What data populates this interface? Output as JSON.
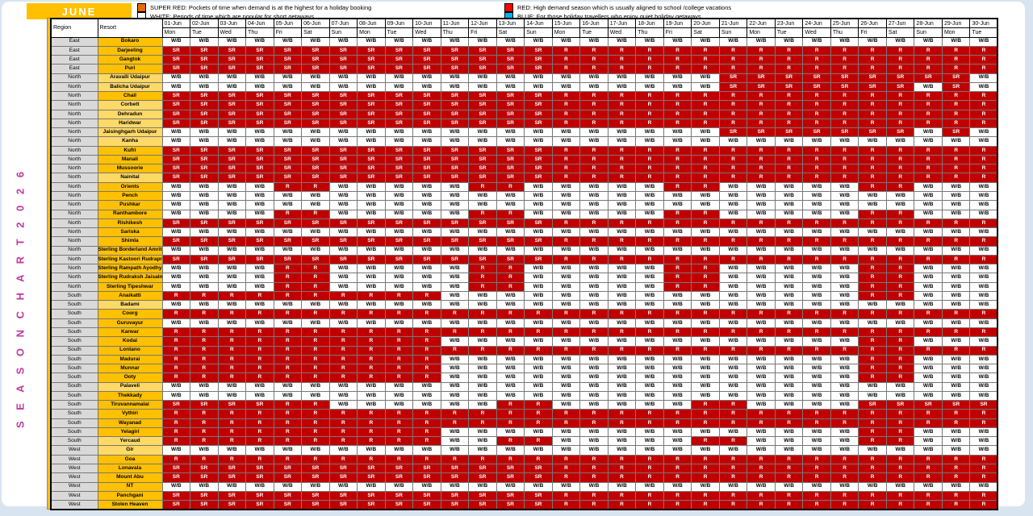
{
  "title": "JUNE",
  "vertical_label": "S E A S O N   C H A R T   2 0 2 6",
  "legend": [
    {
      "name": "super-red",
      "swatch": "#E26B0A",
      "label": "SUPER RED: Pockets of time when demand is at the highest for a holiday booking"
    },
    {
      "name": "white",
      "swatch": "#FFFFFF",
      "label": "WHITE: Periods of time which are popular for short getaways"
    },
    {
      "name": "red",
      "swatch": "#FF0000",
      "label": "RED: High demand season which is usually aligned to school /college vacations"
    },
    {
      "name": "blue",
      "swatch": "#00B0F0",
      "label": "BLUE: For those holiday travellers who enjoy quiet holiday getaways"
    }
  ],
  "colors": {
    "cell_red": "#C00000",
    "gold": "#FFC000",
    "light_gold": "#FFD966",
    "region_gray": "#D9D9D9",
    "accent_magenta": "#C0399F"
  },
  "columns": {
    "region_header": "Region",
    "resort_header": "Resort",
    "dates": [
      "01-Jun",
      "02-Jun",
      "03-Jun",
      "04-Jun",
      "05-Jun",
      "06-Jun",
      "07-Jun",
      "08-Jun",
      "09-Jun",
      "10-Jun",
      "11-Jun",
      "12-Jun",
      "13-Jun",
      "14-Jun",
      "15-Jun",
      "16-Jun",
      "17-Jun",
      "18-Jun",
      "19-Jun",
      "20-Jun",
      "21-Jun",
      "22-Jun",
      "23-Jun",
      "24-Jun",
      "25-Jun",
      "26-Jun",
      "27-Jun",
      "28-Jun",
      "29-Jun",
      "30-Jun"
    ],
    "days": [
      "Mon",
      "Tue",
      "Wed",
      "Thu",
      "Fri",
      "Sat",
      "Sun",
      "Mon",
      "Tue",
      "Wed",
      "Thu",
      "Fri",
      "Sat",
      "Sun",
      "Mon",
      "Tue",
      "Wed",
      "Thu",
      "Fri",
      "Sat",
      "Sun",
      "Mon",
      "Tue",
      "Wed",
      "Thu",
      "Fri",
      "Sat",
      "Sun",
      "Mon",
      "Tue"
    ]
  },
  "rows": [
    {
      "region": "East",
      "resort": "Bokaro",
      "shade": "gold",
      "runs": [
        [
          "W/B",
          30
        ]
      ]
    },
    {
      "region": "East",
      "resort": "Darjeeling",
      "shade": "gold",
      "runs": [
        [
          "SR",
          14
        ],
        [
          "R",
          16
        ]
      ]
    },
    {
      "region": "East",
      "resort": "Gangtok",
      "shade": "gold",
      "runs": [
        [
          "SR",
          14
        ],
        [
          "R",
          16
        ]
      ]
    },
    {
      "region": "East",
      "resort": "Puri",
      "shade": "gold",
      "runs": [
        [
          "SR",
          14
        ],
        [
          "R",
          16
        ]
      ]
    },
    {
      "region": "North",
      "resort": "Aravalli Udaipur",
      "shade": "light",
      "runs": [
        [
          "W/B",
          20
        ],
        [
          "SR",
          9
        ],
        [
          "W/B",
          1
        ]
      ]
    },
    {
      "region": "North",
      "resort": "Balicha Udaipur",
      "shade": "light",
      "runs": [
        [
          "W/B",
          20
        ],
        [
          "SR",
          7
        ],
        [
          "W/B",
          1
        ],
        [
          "SR",
          1
        ],
        [
          "W/B",
          1
        ]
      ]
    },
    {
      "region": "North",
      "resort": "Chail",
      "shade": "gold",
      "runs": [
        [
          "SR",
          14
        ],
        [
          "R",
          16
        ]
      ]
    },
    {
      "region": "North",
      "resort": "Corbett",
      "shade": "light",
      "runs": [
        [
          "SR",
          14
        ],
        [
          "R",
          16
        ]
      ]
    },
    {
      "region": "North",
      "resort": "Dehradun",
      "shade": "light",
      "runs": [
        [
          "SR",
          14
        ],
        [
          "R",
          16
        ]
      ]
    },
    {
      "region": "North",
      "resort": "Haridwar",
      "shade": "light",
      "runs": [
        [
          "SR",
          14
        ],
        [
          "R",
          16
        ]
      ]
    },
    {
      "region": "North",
      "resort": "Jaisinghgarh Udaipur",
      "shade": "light",
      "runs": [
        [
          "W/B",
          20
        ],
        [
          "SR",
          7
        ],
        [
          "W/B",
          1
        ],
        [
          "SR",
          1
        ],
        [
          "W/B",
          1
        ]
      ]
    },
    {
      "region": "North",
      "resort": "Kanha",
      "shade": "light",
      "runs": [
        [
          "W/B",
          30
        ]
      ]
    },
    {
      "region": "North",
      "resort": "Kufri",
      "shade": "gold",
      "runs": [
        [
          "SR",
          14
        ],
        [
          "R",
          16
        ]
      ]
    },
    {
      "region": "North",
      "resort": "Manali",
      "shade": "gold",
      "runs": [
        [
          "SR",
          14
        ],
        [
          "R",
          16
        ]
      ]
    },
    {
      "region": "North",
      "resort": "Mussoorie",
      "shade": "gold",
      "runs": [
        [
          "SR",
          14
        ],
        [
          "R",
          16
        ]
      ]
    },
    {
      "region": "North",
      "resort": "Nainital",
      "shade": "light",
      "runs": [
        [
          "SR",
          14
        ],
        [
          "R",
          16
        ]
      ]
    },
    {
      "region": "North",
      "resort": "Orients",
      "shade": "gold",
      "runs": [
        [
          "W/B",
          4
        ],
        [
          "R",
          2
        ],
        [
          "W/B",
          5
        ],
        [
          "R",
          2
        ],
        [
          "W/B",
          5
        ],
        [
          "R",
          2
        ],
        [
          "W/B",
          5
        ],
        [
          "R",
          2
        ],
        [
          "W/B",
          3
        ]
      ]
    },
    {
      "region": "North",
      "resort": "Pench",
      "shade": "gold",
      "runs": [
        [
          "W/B",
          30
        ]
      ]
    },
    {
      "region": "North",
      "resort": "Pushkar",
      "shade": "gold",
      "runs": [
        [
          "W/B",
          30
        ]
      ]
    },
    {
      "region": "North",
      "resort": "Ranthambore",
      "shade": "gold",
      "runs": [
        [
          "W/B",
          4
        ],
        [
          "R",
          2
        ],
        [
          "W/B",
          5
        ],
        [
          "R",
          2
        ],
        [
          "W/B",
          5
        ],
        [
          "R",
          2
        ],
        [
          "W/B",
          5
        ],
        [
          "R",
          2
        ],
        [
          "W/B",
          3
        ]
      ]
    },
    {
      "region": "North",
      "resort": "Rishikesh",
      "shade": "gold",
      "runs": [
        [
          "SR",
          14
        ],
        [
          "R",
          16
        ]
      ]
    },
    {
      "region": "North",
      "resort": "Sariska",
      "shade": "gold",
      "runs": [
        [
          "W/B",
          30
        ]
      ]
    },
    {
      "region": "North",
      "resort": "Shimla",
      "shade": "gold",
      "runs": [
        [
          "SR",
          14
        ],
        [
          "R",
          16
        ]
      ]
    },
    {
      "region": "North",
      "resort": "Sterling Borderland Amritsar",
      "shade": "gold",
      "runs": [
        [
          "W/B",
          30
        ]
      ]
    },
    {
      "region": "North",
      "resort": "Sterling Kastoori Rudraprayag",
      "shade": "gold",
      "runs": [
        [
          "SR",
          14
        ],
        [
          "R",
          16
        ]
      ]
    },
    {
      "region": "North",
      "resort": "Sterling Rampath Ayodhya",
      "shade": "gold",
      "runs": [
        [
          "W/B",
          4
        ],
        [
          "R",
          2
        ],
        [
          "W/B",
          5
        ],
        [
          "R",
          2
        ],
        [
          "W/B",
          5
        ],
        [
          "R",
          2
        ],
        [
          "W/B",
          5
        ],
        [
          "R",
          2
        ],
        [
          "W/B",
          3
        ]
      ]
    },
    {
      "region": "North",
      "resort": "Sterling Rudraksh Jaisalmer",
      "shade": "gold",
      "runs": [
        [
          "W/B",
          4
        ],
        [
          "R",
          2
        ],
        [
          "W/B",
          5
        ],
        [
          "R",
          2
        ],
        [
          "W/B",
          5
        ],
        [
          "R",
          2
        ],
        [
          "W/B",
          5
        ],
        [
          "R",
          2
        ],
        [
          "W/B",
          3
        ]
      ]
    },
    {
      "region": "North",
      "resort": "Sterling Tipeshwar",
      "shade": "gold",
      "runs": [
        [
          "W/B",
          4
        ],
        [
          "R",
          2
        ],
        [
          "W/B",
          5
        ],
        [
          "R",
          2
        ],
        [
          "W/B",
          5
        ],
        [
          "R",
          2
        ],
        [
          "W/B",
          5
        ],
        [
          "R",
          2
        ],
        [
          "W/B",
          3
        ]
      ]
    },
    {
      "region": "South",
      "resort": "Anaikatti",
      "shade": "gold",
      "runs": [
        [
          "R",
          10
        ],
        [
          "W/B",
          15
        ],
        [
          "R",
          2
        ],
        [
          "W/B",
          3
        ]
      ]
    },
    {
      "region": "South",
      "resort": "Badami",
      "shade": "light",
      "runs": [
        [
          "W/B",
          30
        ]
      ]
    },
    {
      "region": "South",
      "resort": "Coorg",
      "shade": "gold",
      "runs": [
        [
          "R",
          30
        ]
      ]
    },
    {
      "region": "South",
      "resort": "Guruvayur",
      "shade": "gold",
      "runs": [
        [
          "W/B",
          30
        ]
      ]
    },
    {
      "region": "South",
      "resort": "Karwar",
      "shade": "gold",
      "runs": [
        [
          "R",
          30
        ]
      ]
    },
    {
      "region": "South",
      "resort": "Kodai",
      "shade": "gold",
      "runs": [
        [
          "R",
          10
        ],
        [
          "W/B",
          15
        ],
        [
          "R",
          2
        ],
        [
          "W/B",
          3
        ]
      ]
    },
    {
      "region": "South",
      "resort": "Lontano",
      "shade": "gold",
      "runs": [
        [
          "R",
          30
        ]
      ]
    },
    {
      "region": "South",
      "resort": "Madurai",
      "shade": "gold",
      "runs": [
        [
          "R",
          10
        ],
        [
          "W/B",
          15
        ],
        [
          "R",
          2
        ],
        [
          "W/B",
          3
        ]
      ]
    },
    {
      "region": "South",
      "resort": "Munnar",
      "shade": "gold",
      "runs": [
        [
          "R",
          10
        ],
        [
          "W/B",
          15
        ],
        [
          "R",
          2
        ],
        [
          "W/B",
          3
        ]
      ]
    },
    {
      "region": "South",
      "resort": "Ooty",
      "shade": "gold",
      "runs": [
        [
          "R",
          10
        ],
        [
          "W/B",
          15
        ],
        [
          "R",
          2
        ],
        [
          "W/B",
          3
        ]
      ]
    },
    {
      "region": "South",
      "resort": "Palaveli",
      "shade": "light",
      "runs": [
        [
          "W/B",
          30
        ]
      ]
    },
    {
      "region": "South",
      "resort": "Thekkady",
      "shade": "gold",
      "runs": [
        [
          "W/B",
          30
        ]
      ]
    },
    {
      "region": "South",
      "resort": "Tiruvannamalai",
      "shade": "gold",
      "runs": [
        [
          "SR",
          4
        ],
        [
          "R",
          2
        ],
        [
          "W/B",
          6
        ],
        [
          "R",
          2
        ],
        [
          "W/B",
          5
        ],
        [
          "R",
          2
        ],
        [
          "W/B",
          4
        ],
        [
          "SR",
          5
        ]
      ]
    },
    {
      "region": "South",
      "resort": "Vythiri",
      "shade": "gold",
      "runs": [
        [
          "R",
          30
        ]
      ]
    },
    {
      "region": "South",
      "resort": "Wayanad",
      "shade": "gold",
      "runs": [
        [
          "R",
          30
        ]
      ]
    },
    {
      "region": "South",
      "resort": "Yelagiri",
      "shade": "gold",
      "runs": [
        [
          "R",
          10
        ],
        [
          "W/B",
          15
        ],
        [
          "R",
          2
        ],
        [
          "W/B",
          3
        ]
      ]
    },
    {
      "region": "South",
      "resort": "Yercaud",
      "shade": "light",
      "runs": [
        [
          "R",
          10
        ],
        [
          "W/B",
          2
        ],
        [
          "R",
          2
        ],
        [
          "W/B",
          5
        ],
        [
          "R",
          2
        ],
        [
          "W/B",
          4
        ],
        [
          "R",
          2
        ],
        [
          "W/B",
          3
        ]
      ]
    },
    {
      "region": "West",
      "resort": "Gir",
      "shade": "light",
      "runs": [
        [
          "W/B",
          30
        ]
      ]
    },
    {
      "region": "West",
      "resort": "Goa",
      "shade": "gold",
      "runs": [
        [
          "R",
          30
        ]
      ]
    },
    {
      "region": "West",
      "resort": "Lonavala",
      "shade": "gold",
      "runs": [
        [
          "SR",
          14
        ],
        [
          "R",
          16
        ]
      ]
    },
    {
      "region": "West",
      "resort": "Mount Abu",
      "shade": "gold",
      "runs": [
        [
          "SR",
          14
        ],
        [
          "R",
          16
        ]
      ]
    },
    {
      "region": "West",
      "resort": "NT",
      "shade": "gold",
      "runs": [
        [
          "W/B",
          30
        ]
      ]
    },
    {
      "region": "West",
      "resort": "Panchgani",
      "shade": "gold",
      "runs": [
        [
          "SR",
          14
        ],
        [
          "R",
          16
        ]
      ]
    },
    {
      "region": "West",
      "resort": "Stolen Heaven",
      "shade": "gold",
      "runs": [
        [
          "SR",
          14
        ],
        [
          "R",
          16
        ]
      ]
    }
  ]
}
